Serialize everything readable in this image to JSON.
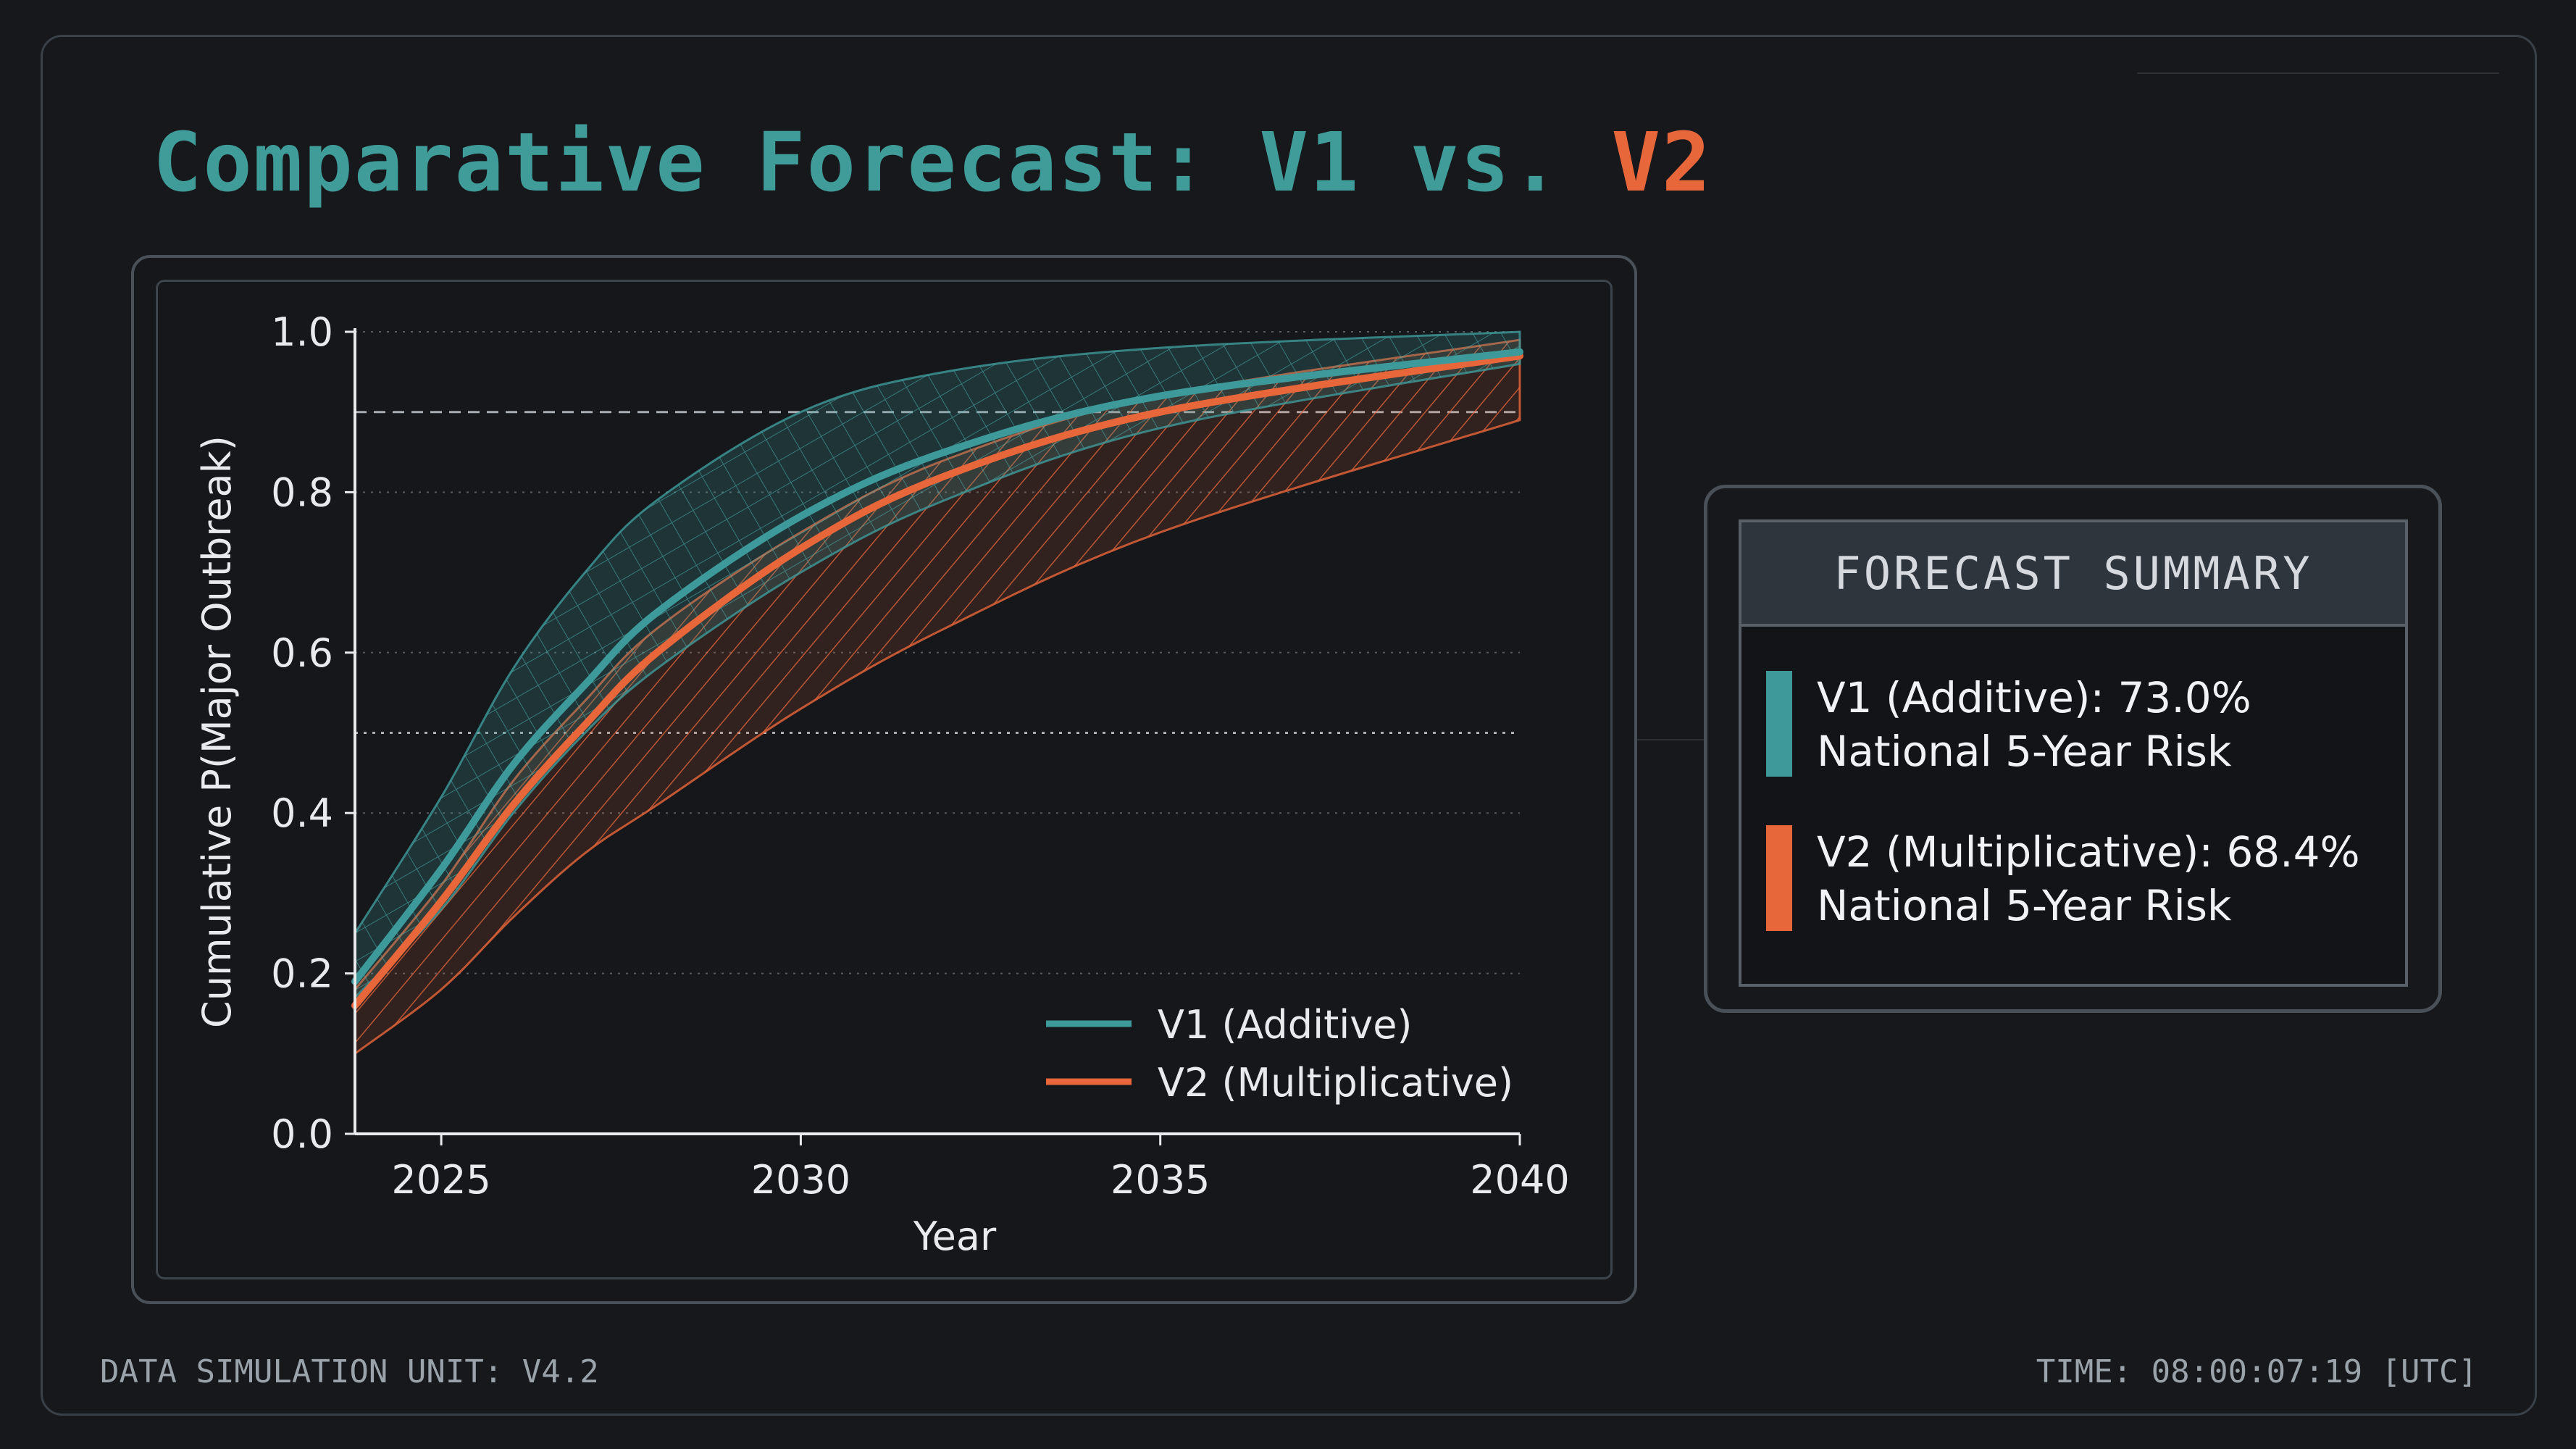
{
  "header": {
    "title_part1": "Comparative Forecast: V1 vs. ",
    "title_part2": "V2"
  },
  "colors": {
    "background": "#16181c",
    "v1": "#3e9a9a",
    "v2": "#e8673a",
    "title": "#3f9c98"
  },
  "summary": {
    "title": "FORECAST SUMMARY",
    "entries": [
      {
        "line1": "V1 (Additive): 73.0%",
        "line2": "National 5-Year Risk",
        "color": "#3e9a9a"
      },
      {
        "line1": "V2 (Multiplicative): 68.4%",
        "line2": "National 5-Year Risk",
        "color": "#e8673a"
      }
    ]
  },
  "footer": {
    "left": "DATA SIMULATION UNIT: V4.2",
    "right": "TIME: 08:00:07:19 [UTC]"
  },
  "chart_data": {
    "type": "line",
    "title": "",
    "xlabel": "Year",
    "ylabel": "Cumulative P(Major Outbreak)",
    "xlim": [
      2023.8,
      2040
    ],
    "ylim": [
      0,
      1.0
    ],
    "xticks": [
      "2025",
      "2030",
      "2035",
      "2040"
    ],
    "yticks": [
      "0.0",
      "0.2",
      "0.4",
      "0.6",
      "0.8",
      "1.0"
    ],
    "grid": "horizontal dotted",
    "reference_lines": [
      {
        "y": 0.9,
        "style": "dashed"
      },
      {
        "y": 0.5,
        "style": "dotted"
      }
    ],
    "legend_position": "bottom-right",
    "x": [
      2023.8,
      2025,
      2026,
      2027,
      2028,
      2030,
      2032,
      2035,
      2040
    ],
    "series": [
      {
        "name": "V1 (Additive)",
        "color": "#3e9a9a",
        "values": [
          0.19,
          0.33,
          0.46,
          0.56,
          0.65,
          0.77,
          0.85,
          0.92,
          0.975
        ],
        "band_upper": [
          0.25,
          0.42,
          0.58,
          0.7,
          0.79,
          0.9,
          0.95,
          0.98,
          1.0
        ],
        "band_lower": [
          0.17,
          0.28,
          0.4,
          0.5,
          0.58,
          0.7,
          0.79,
          0.88,
          0.96
        ]
      },
      {
        "name": "V2 (Multiplicative)",
        "color": "#e8673a",
        "values": [
          0.16,
          0.29,
          0.41,
          0.51,
          0.6,
          0.73,
          0.82,
          0.9,
          0.97
        ],
        "band_upper": [
          0.18,
          0.31,
          0.44,
          0.54,
          0.63,
          0.75,
          0.84,
          0.92,
          0.99
        ],
        "band_lower": [
          0.1,
          0.18,
          0.27,
          0.35,
          0.41,
          0.53,
          0.63,
          0.75,
          0.89
        ]
      }
    ]
  }
}
